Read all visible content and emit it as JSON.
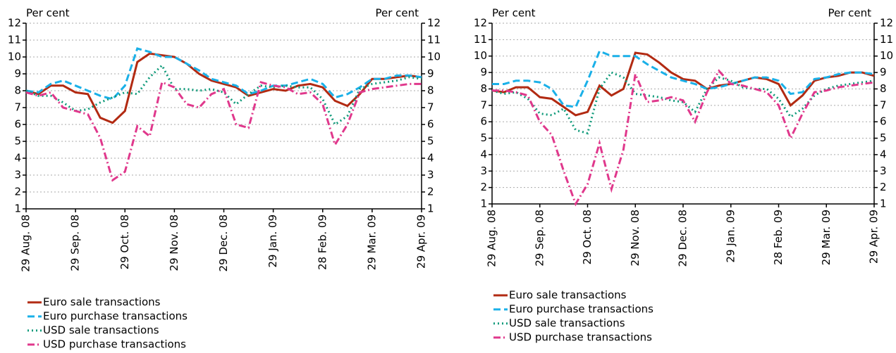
{
  "chart_data": [
    {
      "type": "line",
      "y_label": "Per cent",
      "y2_label": "Per cent",
      "categories": [
        "29 Aug. 08",
        null,
        null,
        null,
        "29 Sep. 08",
        null,
        null,
        null,
        "29 Oct. 08",
        null,
        null,
        null,
        "29 Nov. 08",
        null,
        null,
        null,
        "29 Dec. 08",
        null,
        null,
        null,
        "29 Jan. 09",
        null,
        null,
        null,
        "28 Feb. 09",
        null,
        null,
        null,
        "29 Mar. 09",
        null,
        null,
        null,
        "29 Apr. 09"
      ],
      "ylim": [
        1,
        12
      ],
      "yticks": [
        1,
        2,
        3,
        4,
        5,
        6,
        7,
        8,
        9,
        10,
        11,
        12
      ],
      "y2lim": [
        1,
        12
      ],
      "y2ticks": [
        1,
        2,
        3,
        4,
        5,
        6,
        7,
        8,
        9,
        10,
        11,
        12
      ],
      "grid": true,
      "series": [
        {
          "name": "Euro sale transactions",
          "color": "#b22a12",
          "line_style": "solid",
          "values": [
            8.0,
            7.8,
            8.3,
            8.3,
            7.9,
            7.8,
            6.4,
            6.1,
            6.8,
            9.7,
            10.2,
            10.1,
            10.0,
            9.6,
            9.0,
            8.6,
            8.4,
            8.2,
            7.7,
            7.9,
            8.1,
            8.0,
            8.3,
            8.4,
            8.2,
            7.4,
            7.1,
            7.8,
            8.7,
            8.7,
            8.8,
            8.9,
            8.8
          ]
        },
        {
          "name": "Euro purchase transactions",
          "color": "#1ab0e8",
          "line_style": "dashed",
          "values": [
            8.0,
            7.9,
            8.4,
            8.6,
            8.3,
            8.0,
            7.7,
            7.5,
            8.3,
            10.5,
            10.3,
            10.0,
            10.0,
            9.6,
            9.2,
            8.7,
            8.5,
            8.3,
            7.8,
            8.0,
            8.3,
            8.3,
            8.5,
            8.7,
            8.4,
            7.6,
            7.8,
            8.2,
            8.7,
            8.7,
            8.9,
            8.9,
            8.8
          ]
        },
        {
          "name": "USD sale transactions",
          "color": "#0f9a7a",
          "line_style": "dotted",
          "values": [
            8.0,
            7.7,
            7.7,
            7.3,
            6.8,
            6.9,
            7.3,
            7.6,
            7.9,
            7.8,
            8.8,
            9.5,
            8.1,
            8.1,
            8.0,
            8.1,
            7.9,
            7.2,
            7.8,
            8.3,
            8.2,
            8.3,
            8.2,
            8.2,
            7.5,
            6.0,
            6.5,
            8.1,
            8.4,
            8.5,
            8.6,
            8.8,
            8.7
          ]
        },
        {
          "name": "USD purchase transactions",
          "color": "#e0388c",
          "line_style": "dashdot",
          "values": [
            7.9,
            7.7,
            7.9,
            7.0,
            6.8,
            6.6,
            5.2,
            2.7,
            3.2,
            5.9,
            5.3,
            8.5,
            8.2,
            7.2,
            7.0,
            7.8,
            8.1,
            6.0,
            5.8,
            8.5,
            8.3,
            8.2,
            7.8,
            7.9,
            7.2,
            4.8,
            6.0,
            7.9,
            8.1,
            8.2,
            8.3,
            8.4,
            8.4
          ]
        }
      ]
    },
    {
      "type": "line",
      "y_label": "Per cent",
      "y2_label": "Per cent",
      "categories": [
        "29 Aug. 08",
        null,
        null,
        null,
        "29 Sep. 08",
        null,
        null,
        null,
        "29 Oct. 08",
        null,
        null,
        null,
        "29 Nov. 08",
        null,
        null,
        null,
        "29 Dec. 08",
        null,
        null,
        null,
        "29 Jan. 09",
        null,
        null,
        null,
        "28 Feb. 09",
        null,
        null,
        null,
        "29 Mar. 09",
        null,
        null,
        null,
        "29 Apr. 09"
      ],
      "ylim": [
        1,
        12
      ],
      "yticks": [
        1,
        2,
        3,
        4,
        5,
        6,
        7,
        8,
        9,
        10,
        11,
        12
      ],
      "y2lim": [
        1,
        12
      ],
      "y2ticks": [
        1,
        2,
        3,
        4,
        5,
        6,
        7,
        8,
        9,
        10,
        11,
        12
      ],
      "grid": true,
      "series": [
        {
          "name": "Euro sale transactions",
          "color": "#b22a12",
          "line_style": "solid",
          "values": [
            7.9,
            7.8,
            8.1,
            8.1,
            7.5,
            7.4,
            6.9,
            6.4,
            6.6,
            8.2,
            7.6,
            8.0,
            10.2,
            10.1,
            9.6,
            9.0,
            8.6,
            8.5,
            8.0,
            8.2,
            8.3,
            8.5,
            8.7,
            8.6,
            8.3,
            7.0,
            7.6,
            8.5,
            8.7,
            8.8,
            9.0,
            9.0,
            8.8
          ]
        },
        {
          "name": "Euro purchase transactions",
          "color": "#1ab0e8",
          "line_style": "dashed",
          "values": [
            8.3,
            8.3,
            8.5,
            8.5,
            8.4,
            8.0,
            7.0,
            6.9,
            8.5,
            10.3,
            10.0,
            10.0,
            10.0,
            9.5,
            9.1,
            8.7,
            8.5,
            8.3,
            8.0,
            8.1,
            8.3,
            8.5,
            8.7,
            8.7,
            8.5,
            7.7,
            7.8,
            8.6,
            8.7,
            8.9,
            9.0,
            9.0,
            8.9
          ]
        },
        {
          "name": "USD sale transactions",
          "color": "#0f9a7a",
          "line_style": "dotted",
          "values": [
            7.9,
            7.7,
            7.8,
            7.4,
            6.5,
            6.4,
            6.8,
            5.5,
            5.3,
            8.0,
            9.0,
            8.7,
            7.7,
            7.6,
            7.5,
            7.3,
            7.2,
            6.6,
            8.0,
            8.7,
            8.5,
            8.1,
            8.0,
            8.0,
            7.4,
            6.3,
            6.8,
            7.6,
            8.0,
            8.2,
            8.3,
            8.4,
            8.5
          ]
        },
        {
          "name": "USD purchase transactions",
          "color": "#e0388c",
          "line_style": "dashdot",
          "values": [
            7.9,
            7.9,
            7.8,
            7.6,
            6.0,
            5.2,
            3.0,
            1.0,
            2.2,
            4.7,
            1.9,
            4.3,
            8.9,
            7.2,
            7.3,
            7.5,
            7.3,
            6.0,
            7.8,
            9.1,
            8.3,
            8.2,
            8.0,
            7.8,
            7.0,
            5.0,
            6.5,
            7.8,
            7.9,
            8.1,
            8.2,
            8.3,
            8.4
          ]
        }
      ]
    }
  ]
}
